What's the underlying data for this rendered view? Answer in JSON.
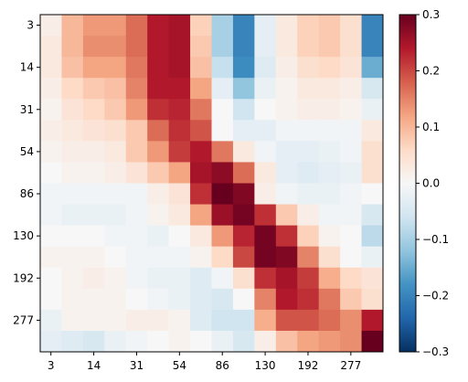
{
  "chart_data": {
    "type": "heatmap",
    "title": "",
    "xlabel": "",
    "ylabel": "",
    "rows": 16,
    "cols": 16,
    "x_tick_labels": [
      "3",
      "14",
      "31",
      "54",
      "86",
      "130",
      "192",
      "277"
    ],
    "x_tick_indices": [
      0,
      2,
      4,
      6,
      8,
      10,
      12,
      14
    ],
    "y_tick_labels": [
      "3",
      "14",
      "31",
      "54",
      "86",
      "130",
      "192",
      "277"
    ],
    "y_tick_indices": [
      0,
      2,
      4,
      6,
      8,
      10,
      12,
      14
    ],
    "colorbar": {
      "min": -0.3,
      "max": 0.3,
      "ticks": [
        0.3,
        0.2,
        0.1,
        0.0,
        -0.1,
        -0.2,
        -0.3
      ],
      "tick_labels": [
        "0.3",
        "0.2",
        "0.1",
        "0.0",
        "−0.1",
        "−0.2",
        "−0.3"
      ],
      "colormap": "RdBu_r",
      "stops": [
        "#053061",
        "#2166ac",
        "#4393c3",
        "#92c5de",
        "#d1e5f0",
        "#f7f7f7",
        "#fddbc7",
        "#f4a582",
        "#d6604d",
        "#b2182b",
        "#67001f"
      ]
    },
    "values": [
      [
        0.02,
        0.1,
        0.13,
        0.13,
        0.17,
        0.24,
        0.25,
        0.07,
        -0.1,
        -0.2,
        -0.03,
        0.03,
        0.07,
        0.08,
        0.05,
        -0.2
      ],
      [
        0.03,
        0.1,
        0.14,
        0.14,
        0.17,
        0.24,
        0.25,
        0.08,
        -0.1,
        -0.2,
        -0.03,
        0.03,
        0.07,
        0.08,
        0.05,
        -0.2
      ],
      [
        0.03,
        0.09,
        0.12,
        0.12,
        0.16,
        0.24,
        0.25,
        0.09,
        -0.07,
        -0.19,
        -0.04,
        0.02,
        0.05,
        0.06,
        0.04,
        -0.15
      ],
      [
        0.02,
        0.06,
        0.08,
        0.09,
        0.15,
        0.24,
        0.24,
        0.12,
        -0.03,
        -0.12,
        -0.02,
        0.01,
        0.03,
        0.03,
        0.02,
        -0.05
      ],
      [
        0.01,
        0.04,
        0.06,
        0.08,
        0.13,
        0.22,
        0.23,
        0.16,
        0.0,
        -0.06,
        0.0,
        0.01,
        0.02,
        0.02,
        0.01,
        -0.02
      ],
      [
        0.02,
        0.03,
        0.04,
        0.05,
        0.08,
        0.17,
        0.22,
        0.19,
        0.0,
        -0.03,
        -0.03,
        -0.01,
        -0.01,
        -0.01,
        -0.01,
        0.03
      ],
      [
        0.01,
        0.02,
        0.02,
        0.03,
        0.08,
        0.13,
        0.21,
        0.24,
        0.16,
        0.03,
        -0.01,
        -0.03,
        -0.03,
        -0.02,
        -0.01,
        0.05
      ],
      [
        0.0,
        0.01,
        0.01,
        0.02,
        0.04,
        0.08,
        0.12,
        0.25,
        0.27,
        0.17,
        0.03,
        -0.03,
        -0.04,
        -0.03,
        -0.02,
        0.05
      ],
      [
        -0.01,
        -0.01,
        -0.01,
        -0.01,
        -0.01,
        0.02,
        0.04,
        0.22,
        0.3,
        0.28,
        0.02,
        -0.01,
        -0.02,
        -0.02,
        -0.01,
        0.0
      ],
      [
        -0.01,
        -0.02,
        -0.02,
        -0.02,
        -0.01,
        0.01,
        0.03,
        0.12,
        0.26,
        0.29,
        0.22,
        0.08,
        0.02,
        -0.01,
        -0.01,
        -0.05
      ],
      [
        0.0,
        0.0,
        0.0,
        -0.01,
        -0.01,
        -0.02,
        0.0,
        0.03,
        0.13,
        0.23,
        0.29,
        0.22,
        0.07,
        0.01,
        0.0,
        -0.08
      ],
      [
        0.01,
        0.01,
        0.01,
        0.0,
        -0.01,
        -0.01,
        -0.01,
        0.01,
        0.06,
        0.2,
        0.29,
        0.28,
        0.15,
        0.05,
        0.0,
        -0.02
      ],
      [
        0.0,
        0.01,
        0.02,
        0.01,
        -0.01,
        -0.02,
        -0.02,
        -0.04,
        -0.01,
        0.05,
        0.22,
        0.25,
        0.21,
        0.11,
        0.06,
        0.04
      ],
      [
        0.0,
        0.01,
        0.01,
        0.01,
        0.0,
        -0.01,
        -0.02,
        -0.04,
        -0.05,
        0.0,
        0.15,
        0.24,
        0.22,
        0.16,
        0.08,
        0.05
      ],
      [
        -0.02,
        0.01,
        0.01,
        0.01,
        0.02,
        0.02,
        0.01,
        -0.04,
        -0.06,
        -0.06,
        0.11,
        0.19,
        0.19,
        0.17,
        0.14,
        0.24
      ],
      [
        -0.03,
        -0.04,
        -0.05,
        -0.02,
        -0.01,
        0.0,
        0.01,
        0.0,
        -0.02,
        -0.05,
        0.02,
        0.09,
        0.12,
        0.13,
        0.14,
        0.3
      ]
    ]
  }
}
